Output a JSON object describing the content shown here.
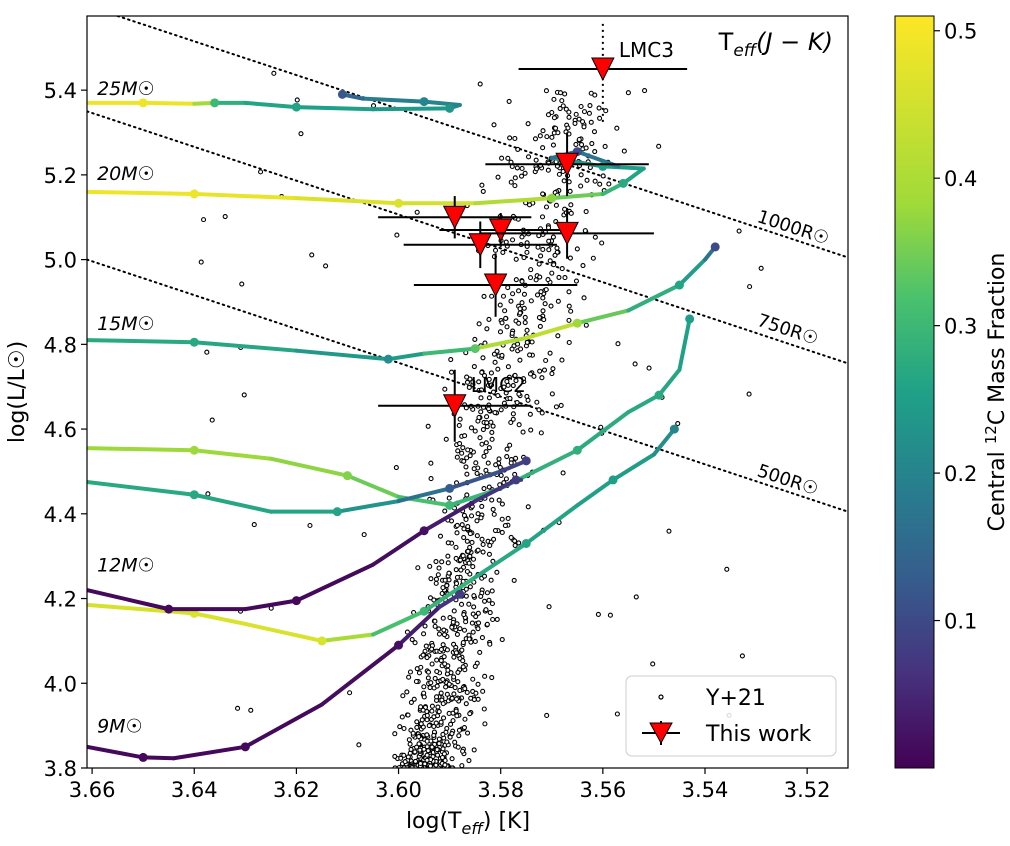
{
  "chart_data": {
    "type": "scatter",
    "title": "T_eff(J − K)",
    "title_main": "T",
    "title_sub": "eff",
    "title_rest": "(J − K)",
    "xlabel_main": "log(T",
    "xlabel_sub": "eff",
    "xlabel_rest": ") [K]",
    "ylabel": "log(L/L☉)",
    "xlim": [
      3.661,
      3.512
    ],
    "ylim": [
      3.8,
      5.575
    ],
    "x_inverted": true,
    "x_ticks": [
      "3.66",
      "3.64",
      "3.62",
      "3.60",
      "3.58",
      "3.56",
      "3.54",
      "3.52"
    ],
    "y_ticks": [
      "3.8",
      "4.0",
      "4.2",
      "4.4",
      "4.6",
      "4.8",
      "5.0",
      "5.2",
      "5.4"
    ],
    "colorbar": {
      "label": "Central ¹²C Mass Fraction",
      "label_pre": "Central ",
      "label_sup": "12",
      "label_post": "C Mass Fraction",
      "range": [
        0.0,
        0.51
      ],
      "ticks": [
        "0.1",
        "0.2",
        "0.3",
        "0.4",
        "0.5"
      ],
      "colormap": "viridis"
    },
    "legend": {
      "placement": "lower-right",
      "entries": [
        {
          "label": "Y+21",
          "marker": "small open circle"
        },
        {
          "label": "This work",
          "marker": "red downward triangle with error bars"
        }
      ]
    },
    "mass_labels": [
      {
        "text": "25M☉",
        "x": 3.66,
        "y": 5.405
      },
      {
        "text": "20M☉",
        "x": 3.66,
        "y": 5.205
      },
      {
        "text": "15M☉",
        "x": 3.66,
        "y": 4.85
      },
      {
        "text": "12M☉",
        "x": 3.66,
        "y": 4.28
      },
      {
        "text": "9M☉",
        "x": 3.66,
        "y": 3.9
      }
    ],
    "radius_lines": [
      {
        "label": "1000R☉",
        "x0": 3.655,
        "y0": 5.575,
        "x1": 3.512,
        "y1": 5.005,
        "label_x": 3.53,
        "label_y": 5.09
      },
      {
        "label": "750R☉",
        "x0": 3.661,
        "y0": 5.35,
        "x1": 3.512,
        "y1": 4.755,
        "label_x": 3.53,
        "label_y": 4.845
      },
      {
        "label": "500R☉",
        "x0": 3.661,
        "y0": 5.0,
        "x1": 3.512,
        "y1": 4.405,
        "label_x": 3.53,
        "label_y": 4.49
      }
    ],
    "this_work": [
      {
        "name": "LMC3",
        "x": 3.56,
        "y": 5.45,
        "xerr": 0.0165,
        "yerr_lo": 0.125,
        "yerr_hi": 0.115,
        "dotted": true
      },
      {
        "name": "",
        "x": 3.567,
        "y": 5.225,
        "xerr": 0.016,
        "yerr": 0.075
      },
      {
        "name": "",
        "x": 3.589,
        "y": 5.1,
        "xerr": 0.015,
        "yerr": 0.05
      },
      {
        "name": "",
        "x": 3.58,
        "y": 5.07,
        "xerr": 0.012,
        "yerr": 0.04
      },
      {
        "name": "",
        "x": 3.567,
        "y": 5.062,
        "xerr": 0.017,
        "yerr": 0.06
      },
      {
        "name": "",
        "x": 3.584,
        "y": 5.035,
        "xerr": 0.015,
        "yerr": 0.055
      },
      {
        "name": "",
        "x": 3.581,
        "y": 4.94,
        "xerr": 0.016,
        "yerr": 0.075
      },
      {
        "name": "LMC2",
        "x": 3.589,
        "y": 4.655,
        "xerr": 0.015,
        "yerr": 0.085
      }
    ],
    "tracks": [
      {
        "mass": "25M☉",
        "points": [
          [
            3.661,
            5.37,
            0.49
          ],
          [
            3.65,
            5.37,
            0.49
          ],
          [
            3.64,
            5.368,
            0.48
          ],
          [
            3.636,
            5.37,
            0.3
          ],
          [
            3.63,
            5.37,
            0.26
          ],
          [
            3.62,
            5.36,
            0.26
          ],
          [
            3.605,
            5.355,
            0.25
          ],
          [
            3.59,
            5.357,
            0.23
          ],
          [
            3.588,
            5.365,
            0.2
          ],
          [
            3.595,
            5.373,
            0.2
          ],
          [
            3.607,
            5.38,
            0.18
          ],
          [
            3.611,
            5.39,
            0.12
          ]
        ]
      },
      {
        "mass": "20M☉",
        "points": [
          [
            3.661,
            5.16,
            0.49
          ],
          [
            3.64,
            5.155,
            0.49
          ],
          [
            3.62,
            5.145,
            0.47
          ],
          [
            3.6,
            5.133,
            0.46
          ],
          [
            3.585,
            5.133,
            0.44
          ],
          [
            3.57,
            5.145,
            0.37
          ],
          [
            3.56,
            5.155,
            0.32
          ],
          [
            3.556,
            5.18,
            0.27
          ],
          [
            3.552,
            5.215,
            0.25
          ],
          [
            3.56,
            5.22,
            0.25
          ],
          [
            3.57,
            5.24,
            0.22
          ],
          [
            3.565,
            5.255,
            0.1
          ],
          [
            3.557,
            5.22,
            0.25
          ]
        ]
      },
      {
        "mass": "15M☉",
        "points": [
          [
            3.661,
            4.81,
            0.27
          ],
          [
            3.64,
            4.805,
            0.27
          ],
          [
            3.62,
            4.785,
            0.26
          ],
          [
            3.602,
            4.765,
            0.22
          ],
          [
            3.595,
            4.778,
            0.27
          ],
          [
            3.585,
            4.79,
            0.33
          ],
          [
            3.575,
            4.815,
            0.47
          ],
          [
            3.565,
            4.85,
            0.38
          ],
          [
            3.555,
            4.88,
            0.3
          ],
          [
            3.545,
            4.94,
            0.26
          ],
          [
            3.54,
            5.0,
            0.24
          ],
          [
            3.538,
            5.03,
            0.1
          ]
        ]
      },
      {
        "mass": "12M☉",
        "points": [
          [
            3.661,
            4.555,
            0.38
          ],
          [
            3.64,
            4.55,
            0.38
          ],
          [
            3.625,
            4.53,
            0.38
          ],
          [
            3.61,
            4.49,
            0.36
          ],
          [
            3.6,
            4.44,
            0.33
          ],
          [
            3.59,
            4.42,
            0.3
          ],
          [
            3.58,
            4.46,
            0.29
          ],
          [
            3.565,
            4.55,
            0.28
          ],
          [
            3.555,
            4.64,
            0.27
          ],
          [
            3.549,
            4.68,
            0.27
          ],
          [
            3.545,
            4.74,
            0.26
          ],
          [
            3.543,
            4.86,
            0.25
          ]
        ]
      },
      {
        "mass": "12M☉b",
        "points": [
          [
            3.661,
            4.475,
            0.27
          ],
          [
            3.64,
            4.445,
            0.27
          ],
          [
            3.625,
            4.405,
            0.26
          ],
          [
            3.612,
            4.405,
            0.26
          ],
          [
            3.6,
            4.43,
            0.2
          ],
          [
            3.59,
            4.46,
            0.13
          ],
          [
            3.58,
            4.5,
            0.1
          ],
          [
            3.575,
            4.525,
            0.08
          ]
        ]
      },
      {
        "mass": "9M☉",
        "points": [
          [
            3.661,
            4.185,
            0.45
          ],
          [
            3.64,
            4.165,
            0.46
          ],
          [
            3.63,
            4.14,
            0.46
          ],
          [
            3.615,
            4.1,
            0.46
          ],
          [
            3.605,
            4.115,
            0.33
          ],
          [
            3.595,
            4.17,
            0.3
          ],
          [
            3.585,
            4.25,
            0.28
          ],
          [
            3.575,
            4.33,
            0.26
          ],
          [
            3.565,
            4.42,
            0.26
          ],
          [
            3.558,
            4.48,
            0.25
          ],
          [
            3.55,
            4.54,
            0.24
          ],
          [
            3.546,
            4.6,
            0.2
          ]
        ]
      },
      {
        "mass": "9M☉b",
        "points": [
          [
            3.661,
            4.22,
            0.01
          ],
          [
            3.645,
            4.175,
            0.01
          ],
          [
            3.63,
            4.175,
            0.01
          ],
          [
            3.62,
            4.195,
            0.01
          ],
          [
            3.605,
            4.28,
            0.01
          ],
          [
            3.595,
            4.36,
            0.02
          ],
          [
            3.585,
            4.43,
            0.05
          ],
          [
            3.577,
            4.48,
            0.08
          ],
          [
            3.576,
            4.48,
            0.08
          ]
        ]
      },
      {
        "mass": "9M☉c",
        "points": [
          [
            3.661,
            3.85,
            0.01
          ],
          [
            3.65,
            3.825,
            0.01
          ],
          [
            3.644,
            3.823,
            0.01
          ],
          [
            3.63,
            3.85,
            0.01
          ],
          [
            3.615,
            3.95,
            0.01
          ],
          [
            3.6,
            4.09,
            0.02
          ],
          [
            3.592,
            4.18,
            0.05
          ],
          [
            3.588,
            4.21,
            0.08
          ]
        ]
      }
    ]
  }
}
